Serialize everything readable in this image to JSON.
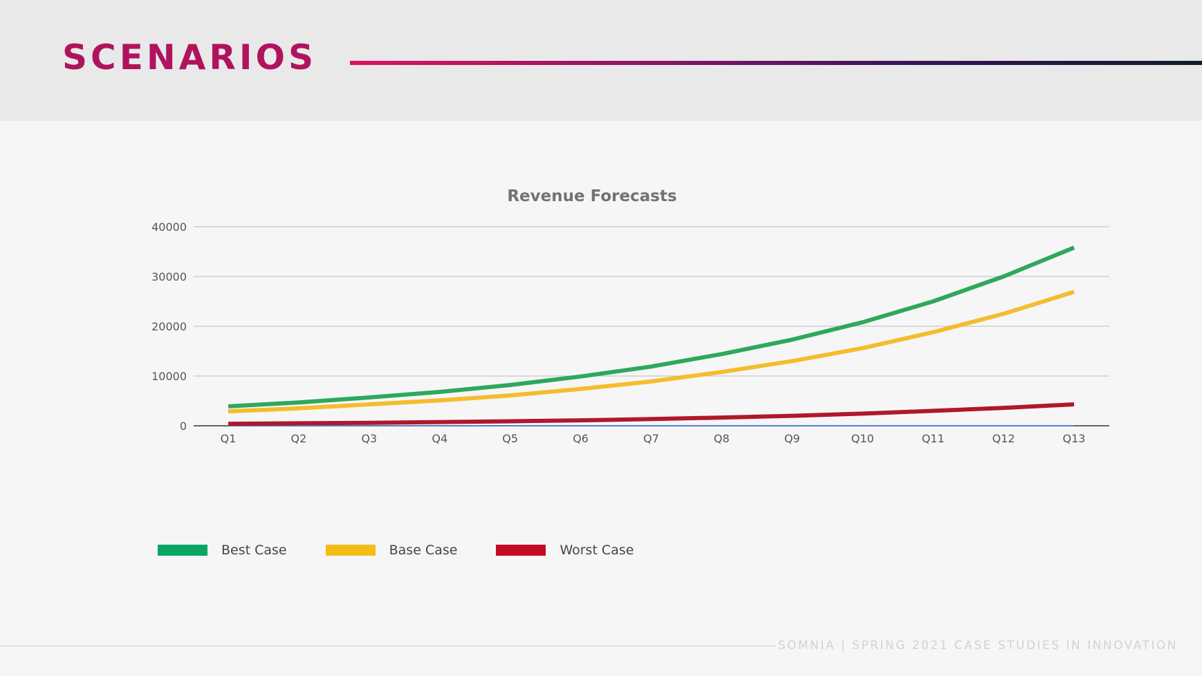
{
  "slide": {
    "title": "SCENARIOS",
    "footer": "SOMNIA | SPRING 2021 CASE STUDIES IN INNOVATION"
  },
  "colors": {
    "title": "#b0135e",
    "best": "#2ea85c",
    "base": "#f4bd2e",
    "worst": "#b0182a",
    "legend_best": "#0aa564",
    "legend_base": "#f4bd16",
    "legend_worst": "#c40a23",
    "zero_series": "#4f7fd0"
  },
  "chart_data": {
    "type": "line",
    "title": "Revenue Forecasts",
    "xlabel": "",
    "ylabel": "",
    "ylim": [
      0,
      40000
    ],
    "yticks": [
      0,
      10000,
      20000,
      30000,
      40000
    ],
    "grid": true,
    "legend_position": "bottom-left",
    "categories": [
      "Q1",
      "Q2",
      "Q3",
      "Q4",
      "Q5",
      "Q6",
      "Q7",
      "Q8",
      "Q9",
      "Q10",
      "Q11",
      "Q12",
      "Q13"
    ],
    "series": [
      {
        "name": "Best Case",
        "color": "#2ea85c",
        "values": [
          3900,
          4700,
          5700,
          6800,
          8200,
          9900,
          11900,
          14400,
          17300,
          20800,
          25000,
          30000,
          35800
        ]
      },
      {
        "name": "Base Case",
        "color": "#f4bd2e",
        "values": [
          2900,
          3500,
          4300,
          5100,
          6100,
          7400,
          8900,
          10800,
          13000,
          15600,
          18800,
          22500,
          26900
        ]
      },
      {
        "name": "Worst Case",
        "color": "#b0182a",
        "values": [
          400,
          500,
          600,
          750,
          900,
          1100,
          1350,
          1650,
          2000,
          2450,
          3000,
          3600,
          4300
        ]
      },
      {
        "color": "#4f7fd0",
        "values": [
          0,
          0,
          0,
          0,
          0,
          0,
          0,
          0,
          0,
          0,
          0,
          0,
          0
        ]
      }
    ]
  },
  "legend": [
    {
      "label": "Best Case",
      "color": "#0aa564"
    },
    {
      "label": "Base Case",
      "color": "#f4bd16"
    },
    {
      "label": "Worst Case",
      "color": "#c40a23"
    }
  ]
}
